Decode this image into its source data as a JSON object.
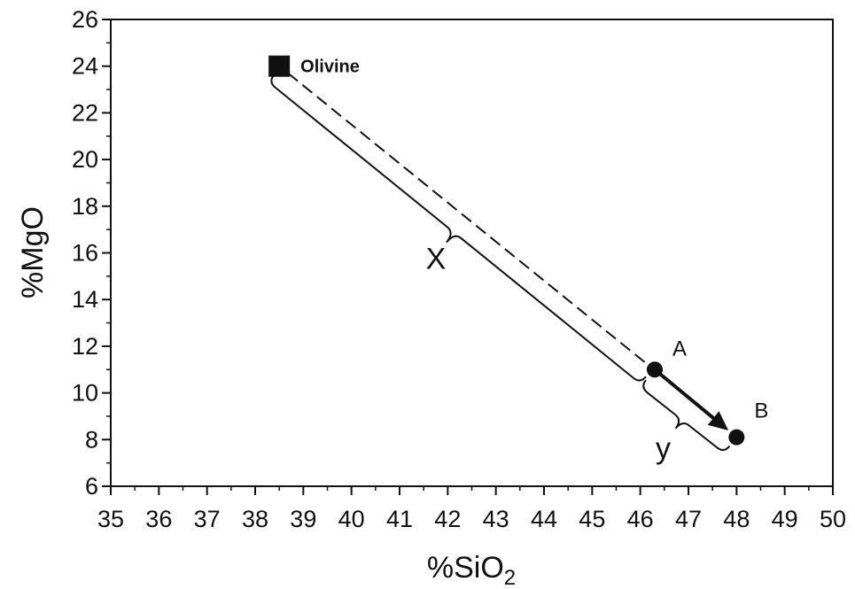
{
  "chart_data": {
    "type": "scatter",
    "xlabel": "%SiO",
    "xlabel_subscript": "2",
    "ylabel": "%MgO",
    "xlim": [
      35,
      50
    ],
    "ylim": [
      6,
      26
    ],
    "x_ticks": [
      "35",
      "36",
      "37",
      "38",
      "39",
      "40",
      "41",
      "42",
      "43",
      "44",
      "45",
      "46",
      "47",
      "48",
      "49",
      "50"
    ],
    "y_ticks": [
      "6",
      "8",
      "10",
      "12",
      "14",
      "16",
      "18",
      "20",
      "22",
      "24",
      "26"
    ],
    "points": [
      {
        "label": "Olivine",
        "x": 38.5,
        "y": 24,
        "marker": "square"
      },
      {
        "label": "A",
        "x": 46.3,
        "y": 11,
        "marker": "circle"
      },
      {
        "label": "B",
        "x": 48.0,
        "y": 8.1,
        "marker": "circle"
      }
    ],
    "dashed_line": {
      "from": "Olivine",
      "to": "A"
    },
    "arrow": {
      "from": "A",
      "to": "B"
    },
    "braces": [
      {
        "label": "X",
        "from": "Olivine",
        "to": "A"
      },
      {
        "label": "y",
        "from": "A",
        "to": "B"
      }
    ]
  }
}
